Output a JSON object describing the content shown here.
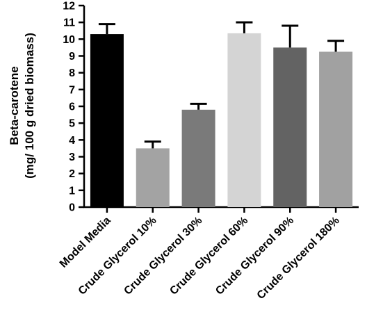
{
  "chart_data": {
    "type": "bar",
    "title": "",
    "xlabel": "",
    "ylabel_lines": [
      "Beta-carotene",
      "(mg/ 100 g dried biomass)"
    ],
    "ylim": [
      0,
      12
    ],
    "yticks": [
      0,
      1,
      2,
      3,
      4,
      5,
      6,
      7,
      8,
      9,
      10,
      11,
      12
    ],
    "categories": [
      "Model Media",
      "Crude Glycerol 10%",
      "Crude Glycerol 30%",
      "Crude Glycerol 60%",
      "Crude Glycerol 90%",
      "Crude Glycerol 180%"
    ],
    "values": [
      10.3,
      3.5,
      5.8,
      10.35,
      9.5,
      9.25
    ],
    "errors": [
      0.6,
      0.4,
      0.35,
      0.65,
      1.3,
      0.65
    ],
    "colors": [
      "#000000",
      "#a3a3a3",
      "#7a7a7a",
      "#d4d4d4",
      "#636363",
      "#a1a1a1"
    ],
    "grid": false,
    "legend": "none",
    "error_bars": "upper"
  }
}
